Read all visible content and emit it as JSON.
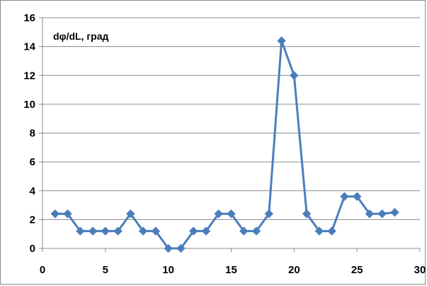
{
  "chart_data": {
    "type": "line",
    "title": "",
    "xlabel": "",
    "ylabel": "",
    "annotation": "dφ/dL, град",
    "xlim": [
      0,
      30
    ],
    "ylim": [
      0,
      16
    ],
    "x_ticks": [
      0,
      5,
      10,
      15,
      20,
      25,
      30
    ],
    "y_ticks": [
      0,
      2,
      4,
      6,
      8,
      10,
      12,
      14,
      16
    ],
    "grid": "horizontal",
    "legend": "none",
    "series": [
      {
        "color": "#4a7ebb",
        "marker": "diamond",
        "x": [
          1,
          2,
          3,
          4,
          5,
          6,
          7,
          8,
          9,
          10,
          11,
          12,
          13,
          14,
          15,
          16,
          17,
          18,
          19,
          20,
          21,
          22,
          23,
          24,
          25,
          26,
          27,
          28
        ],
        "y": [
          2.4,
          2.4,
          1.2,
          1.2,
          1.2,
          1.2,
          2.4,
          1.2,
          1.2,
          0,
          0,
          1.2,
          1.2,
          2.4,
          2.4,
          1.2,
          1.2,
          2.4,
          14.4,
          12,
          2.4,
          1.2,
          1.2,
          3.6,
          3.6,
          2.4,
          2.4,
          2.5
        ]
      }
    ]
  }
}
